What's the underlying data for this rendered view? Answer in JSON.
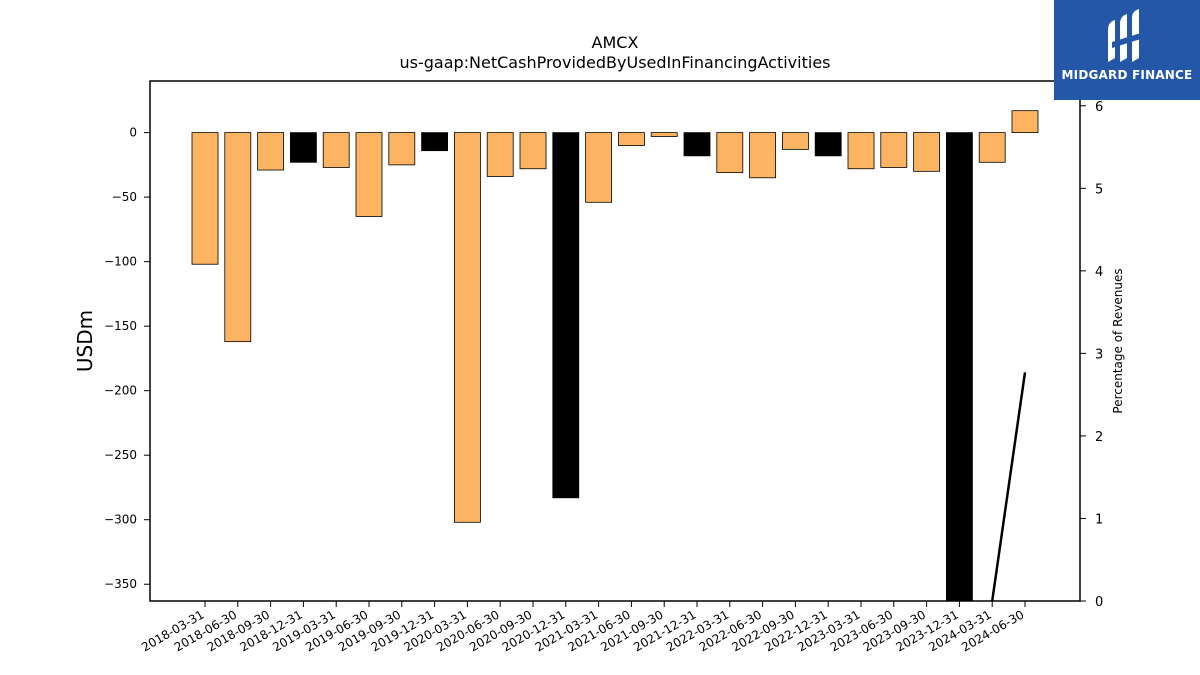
{
  "chart_data": {
    "type": "bar",
    "title": "AMCX",
    "subtitle": "us-gaap:NetCashProvidedByUsedInFinancingActivities",
    "ylabel": "USDm",
    "y2label": "Percentage of Revenues",
    "ylim": [
      -363,
      40
    ],
    "y2lim": [
      0,
      6.3
    ],
    "yticks": [
      0,
      -50,
      -100,
      -150,
      -200,
      -250,
      -300,
      -350
    ],
    "y2ticks": [
      0,
      1,
      2,
      3,
      4,
      5,
      6
    ],
    "categories": [
      "2018-03-31",
      "2018-06-30",
      "2018-09-30",
      "2018-12-31",
      "2019-03-31",
      "2019-06-30",
      "2019-09-30",
      "2019-12-31",
      "2020-03-31",
      "2020-06-30",
      "2020-09-30",
      "2020-12-31",
      "2021-03-31",
      "2021-06-30",
      "2021-09-30",
      "2021-12-31",
      "2022-03-31",
      "2022-06-30",
      "2022-09-30",
      "2022-12-31",
      "2023-03-31",
      "2023-06-30",
      "2023-09-30",
      "2023-12-31",
      "2024-03-31",
      "2024-06-30"
    ],
    "values": [
      -102,
      -162,
      -29,
      -23,
      -27,
      -65,
      -25,
      -14,
      -302,
      -34,
      -28,
      -283,
      -54,
      -10,
      -3,
      -18,
      -31,
      -35,
      -13,
      -18,
      -28,
      -27,
      -30,
      -363,
      -23,
      17
    ],
    "bar_colors": [
      "#fdb462",
      "#fdb462",
      "#fdb462",
      "#000000",
      "#fdb462",
      "#fdb462",
      "#fdb462",
      "#000000",
      "#fdb462",
      "#fdb462",
      "#fdb462",
      "#000000",
      "#fdb462",
      "#fdb462",
      "#fdb462",
      "#000000",
      "#fdb462",
      "#fdb462",
      "#fdb462",
      "#000000",
      "#fdb462",
      "#fdb462",
      "#fdb462",
      "#000000",
      "#fdb462",
      "#fdb462"
    ],
    "line_series": {
      "axis": "right",
      "points": [
        {
          "category": "2024-03-31",
          "value": 0
        },
        {
          "category": "2024-06-30",
          "value": 2.77
        }
      ]
    },
    "grid": false,
    "legend": "none"
  },
  "logo": {
    "text": "MIDGARD FINANCE",
    "color": "#2457a8"
  }
}
